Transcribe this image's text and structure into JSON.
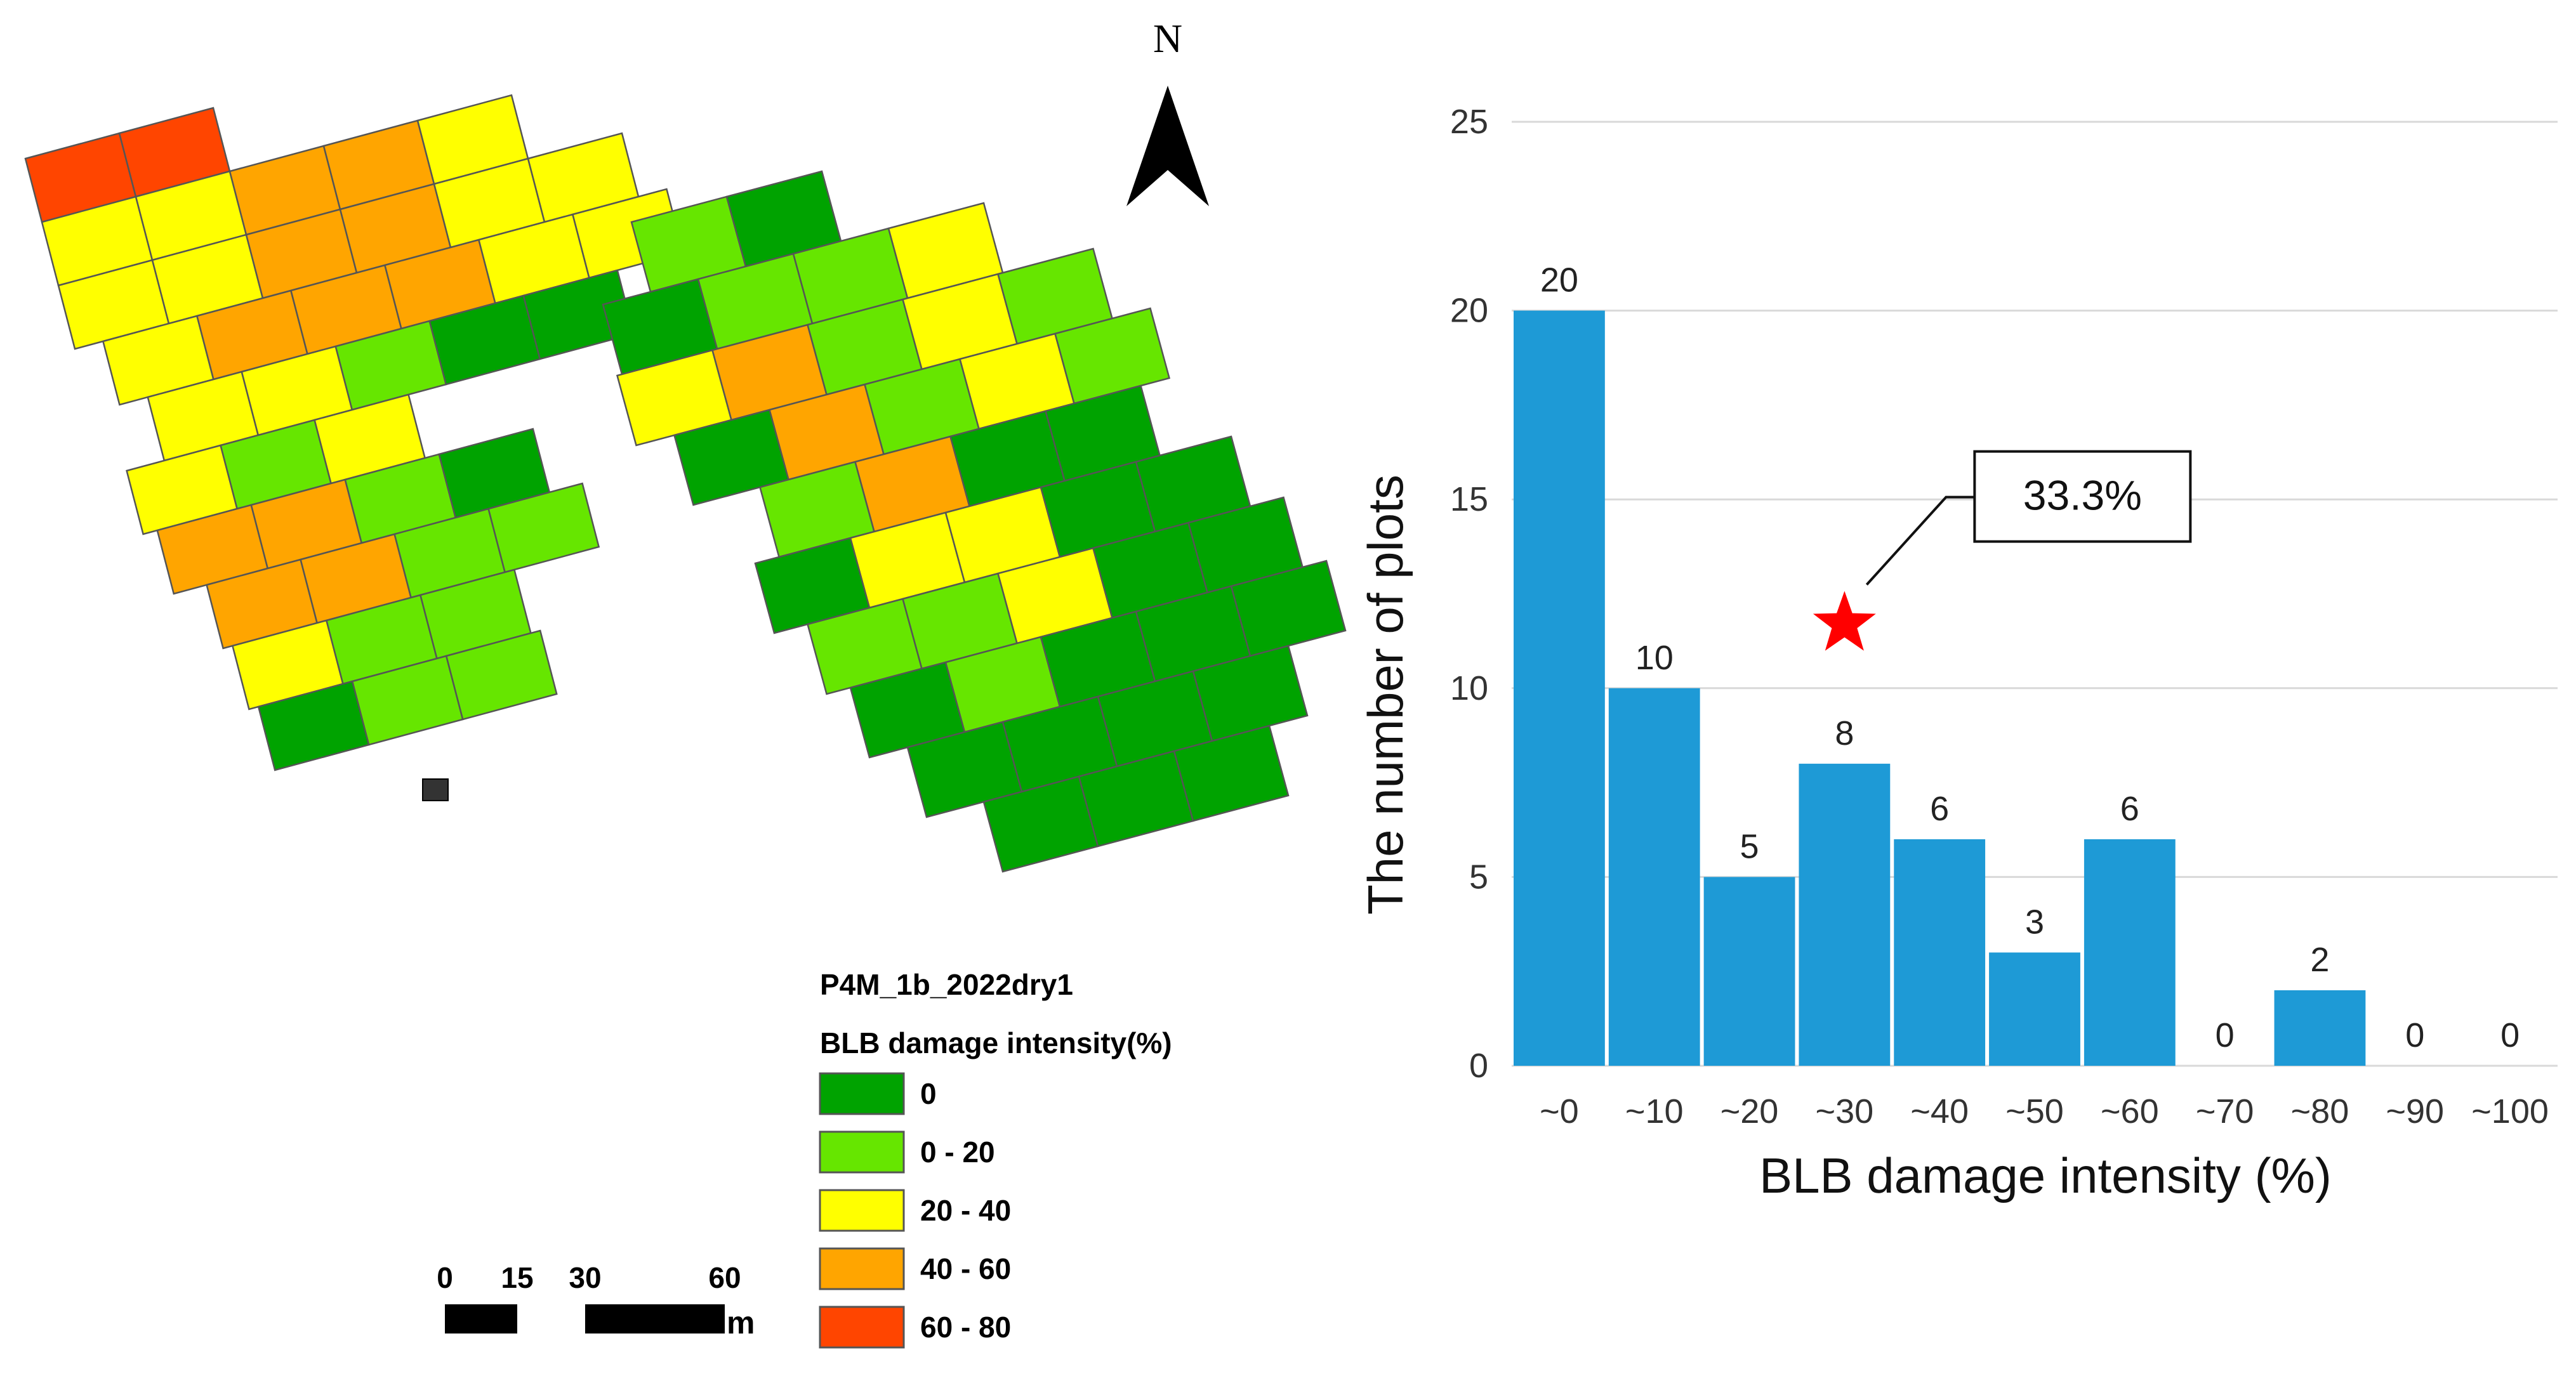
{
  "map": {
    "north_label": "N",
    "legend": {
      "layer_name": "P4M_1b_2022dry1",
      "title": "BLB damage intensity(%)",
      "classes": [
        {
          "label": "0",
          "color": "#00a300"
        },
        {
          "label": "0 - 20",
          "color": "#66e600"
        },
        {
          "label": "20 - 40",
          "color": "#ffff00"
        },
        {
          "label": "40 - 60",
          "color": "#ffa500"
        },
        {
          "label": "60 - 80",
          "color": "#ff4500"
        }
      ]
    },
    "scale_bar": {
      "ticks": [
        "0",
        "15",
        "30",
        "60"
      ],
      "unit": "m"
    },
    "blocks": [
      {
        "name": "block-a",
        "rows": [
          [
            "c4",
            "c4"
          ],
          [
            "c2",
            "c2",
            "c3",
            "c3",
            "c2"
          ],
          [
            "c2",
            "c2",
            "c3",
            "c3",
            "c2",
            "c2"
          ],
          [
            "c2",
            "c3",
            "c3",
            "c3",
            "c2",
            "c2"
          ],
          [
            "c2",
            "c2",
            "c1",
            "c0",
            "c0"
          ],
          [
            "c2",
            "c1",
            "c2"
          ],
          [
            "c3",
            "c3",
            "c1",
            "c0"
          ],
          [
            "c3",
            "c3",
            "c1",
            "c1"
          ],
          [
            "c2",
            "c1",
            "c1"
          ],
          [
            "c0",
            "c1",
            "c1"
          ]
        ]
      },
      {
        "name": "block-b",
        "rows": [
          [
            "c1",
            "c0"
          ],
          [
            "c0",
            "c1",
            "c1",
            "c2"
          ],
          [
            "c2",
            "c3",
            "c1",
            "c2",
            "c1"
          ],
          [
            "c0",
            "c3",
            "c1",
            "c2",
            "c1"
          ],
          [
            "c1",
            "c3",
            "c0",
            "c0"
          ],
          [
            "c0",
            "c2",
            "c2",
            "c0",
            "c0"
          ],
          [
            "c1",
            "c1",
            "c2",
            "c0",
            "c0"
          ],
          [
            "c0",
            "c1",
            "c0",
            "c0",
            "c0"
          ],
          [
            "c0",
            "c0",
            "c0",
            "c0"
          ],
          [
            "c0",
            "c0",
            "c0"
          ]
        ]
      }
    ]
  },
  "chart_data": {
    "type": "bar",
    "title": "",
    "xlabel": "BLB damage intensity (%)",
    "ylabel": "The number of plots",
    "categories": [
      "~0",
      "~10",
      "~20",
      "~30",
      "~40",
      "~50",
      "~60",
      "~70",
      "~80",
      "~90",
      "~100"
    ],
    "values": [
      20,
      10,
      5,
      8,
      6,
      3,
      6,
      0,
      2,
      0,
      0
    ],
    "ylim": [
      0,
      25
    ],
    "yticks": [
      0,
      5,
      10,
      15,
      20,
      25
    ],
    "grid": true,
    "bar_color": "#1e9ad6",
    "annotation": {
      "text": "33.3%",
      "marker": "star",
      "marker_color": "#ff0000",
      "x_category": "~30",
      "y": 11.7
    }
  }
}
